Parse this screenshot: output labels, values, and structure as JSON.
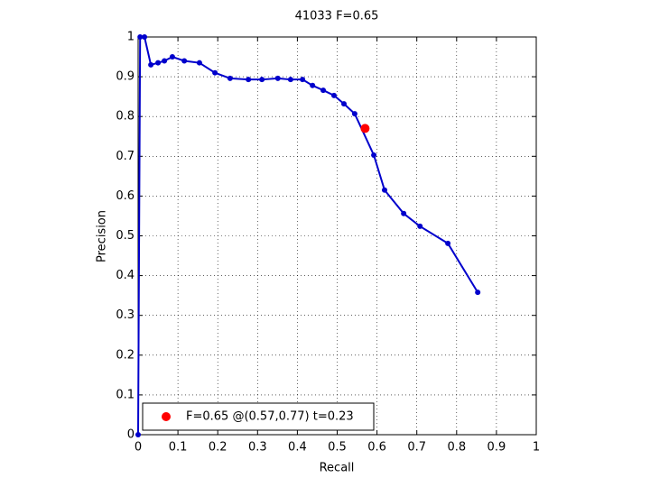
{
  "chart_data": {
    "type": "line",
    "title": "41033 F=0.65",
    "xlabel": "Recall",
    "ylabel": "Precision",
    "xlim": [
      0,
      1
    ],
    "ylim": [
      0,
      1
    ],
    "xticks": [
      0,
      0.1,
      0.2,
      0.3,
      0.4,
      0.5,
      0.6,
      0.7,
      0.8,
      0.9,
      1
    ],
    "yticks": [
      0,
      0.1,
      0.2,
      0.3,
      0.4,
      0.5,
      0.6,
      0.7,
      0.8,
      0.9,
      1
    ],
    "grid": true,
    "legend": "lower left",
    "series": [
      {
        "color": "#0000cc",
        "marker": "dot",
        "x": [
          0,
          0.005,
          0.016,
          0.032,
          0.05,
          0.066,
          0.086,
          0.116,
          0.154,
          0.193,
          0.231,
          0.277,
          0.311,
          0.351,
          0.383,
          0.413,
          0.438,
          0.465,
          0.492,
          0.517,
          0.544,
          0.592,
          0.619,
          0.667,
          0.708,
          0.778,
          0.853
        ],
        "values": [
          0,
          1,
          1,
          0.93,
          0.935,
          0.94,
          0.95,
          0.94,
          0.935,
          0.91,
          0.896,
          0.893,
          0.893,
          0.896,
          0.893,
          0.893,
          0.878,
          0.866,
          0.853,
          0.832,
          0.807,
          0.703,
          0.615,
          0.556,
          0.524,
          0.481,
          0.358
        ]
      },
      {
        "name": "F=0.65 @(0.57,0.77) t=0.23",
        "color": "#ff0000",
        "marker": "big-dot",
        "x": [
          0.57
        ],
        "values": [
          0.77
        ]
      }
    ]
  }
}
